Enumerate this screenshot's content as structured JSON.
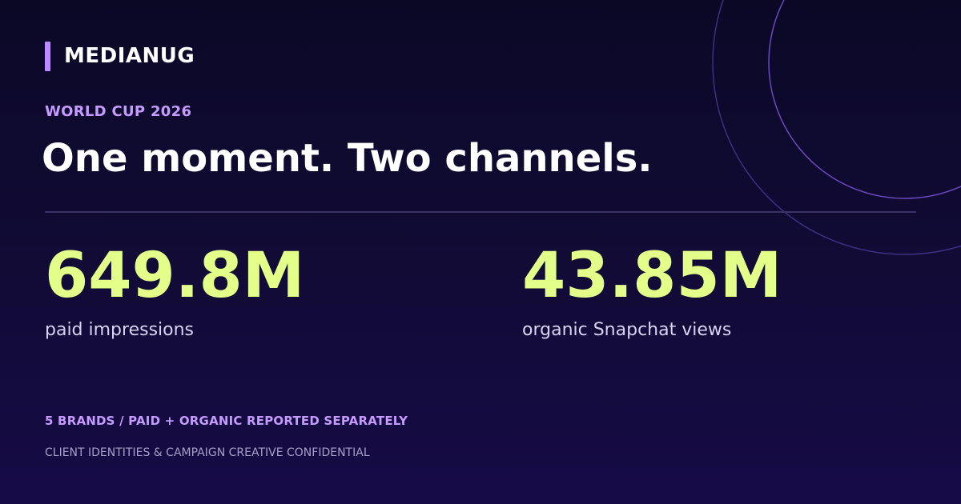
{
  "brand": {
    "name": "MEDIANUG",
    "accent_color": "#b98cff"
  },
  "eyebrow": "WORLD CUP 2026",
  "headline": "One moment. Two channels.",
  "stats": [
    {
      "value": "649.8M",
      "label": "paid impressions"
    },
    {
      "value": "43.85M",
      "label": "organic Snapchat views"
    }
  ],
  "footnote": "5 BRANDS / PAID + ORGANIC REPORTED SEPARATELY",
  "disclaimer": "CLIENT IDENTITIES & CAMPAIGN CREATIVE CONFIDENTIAL",
  "colors": {
    "background_top": "#0b0826",
    "background_bottom": "#160b46",
    "stat_value": "#e3ff8a",
    "eyebrow": "#c59bff"
  },
  "decoration": {
    "icon": "concentric-circles-icon"
  }
}
